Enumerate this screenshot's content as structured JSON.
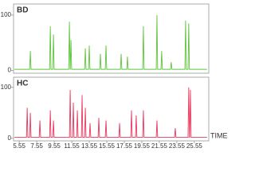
{
  "chart_data": [
    {
      "type": "line",
      "title": "BD",
      "color": "#5ec43c",
      "x": [
        5.0,
        6.74,
        6.82,
        6.9,
        9.02,
        9.1,
        9.18,
        9.38,
        9.46,
        9.54,
        11.2,
        11.28,
        11.36,
        11.38,
        11.46,
        11.54,
        13.02,
        13.1,
        13.18,
        13.47,
        13.55,
        13.63,
        14.74,
        14.82,
        14.9,
        15.38,
        15.46,
        15.54,
        17.11,
        17.19,
        17.27,
        17.83,
        17.91,
        17.99,
        19.65,
        19.73,
        19.81,
        21.2,
        21.28,
        21.36,
        21.74,
        21.82,
        21.9,
        22.83,
        22.91,
        22.99,
        24.47,
        24.55,
        24.63,
        24.83,
        24.91,
        24.99,
        27.0
      ],
      "values": [
        2,
        2,
        35,
        2,
        2,
        80,
        2,
        2,
        65,
        2,
        2,
        88,
        2,
        2,
        55,
        2,
        2,
        40,
        2,
        2,
        45,
        2,
        2,
        30,
        2,
        2,
        45,
        2,
        2,
        30,
        2,
        2,
        25,
        2,
        2,
        80,
        2,
        2,
        100,
        2,
        2,
        35,
        2,
        2,
        15,
        2,
        2,
        90,
        2,
        2,
        85,
        2,
        2
      ],
      "xlim": [
        4.9,
        27.2
      ],
      "ylim": [
        -5,
        120
      ],
      "yticks": [
        0,
        100
      ]
    },
    {
      "type": "line",
      "title": "HC",
      "color": "#e8385e",
      "xlabel": "TIME",
      "x": [
        5.0,
        6.38,
        6.46,
        6.54,
        6.74,
        6.82,
        6.9,
        7.83,
        7.91,
        7.99,
        9.02,
        9.1,
        9.18,
        9.38,
        9.46,
        9.54,
        11.29,
        11.37,
        11.45,
        11.65,
        11.73,
        11.81,
        12.11,
        12.19,
        12.27,
        12.65,
        12.73,
        12.81,
        13.02,
        13.1,
        13.18,
        13.56,
        13.64,
        13.72,
        14.56,
        14.64,
        14.72,
        15.38,
        15.46,
        15.54,
        16.93,
        17.01,
        17.09,
        18.29,
        18.37,
        18.45,
        18.83,
        18.91,
        18.99,
        19.65,
        19.73,
        19.81,
        21.2,
        21.28,
        21.36,
        23.29,
        23.37,
        23.45,
        24.83,
        24.91,
        24.99,
        25.02,
        25.1,
        25.18,
        27.0
      ],
      "values": [
        2,
        2,
        60,
        2,
        2,
        50,
        2,
        2,
        35,
        2,
        2,
        55,
        2,
        2,
        35,
        2,
        2,
        95,
        2,
        2,
        70,
        2,
        2,
        55,
        2,
        2,
        85,
        2,
        2,
        60,
        2,
        2,
        30,
        2,
        2,
        40,
        2,
        2,
        35,
        2,
        2,
        30,
        2,
        2,
        55,
        2,
        2,
        45,
        2,
        2,
        55,
        2,
        2,
        35,
        2,
        2,
        20,
        2,
        2,
        100,
        2,
        2,
        95,
        2,
        2
      ],
      "xlim": [
        4.9,
        27.2
      ],
      "ylim": [
        -5,
        120
      ],
      "yticks": [
        0,
        100
      ],
      "xticks": [
        5.55,
        7.55,
        9.55,
        11.55,
        13.55,
        15.55,
        17.55,
        19.55,
        21.55,
        23.55,
        25.55
      ]
    }
  ]
}
